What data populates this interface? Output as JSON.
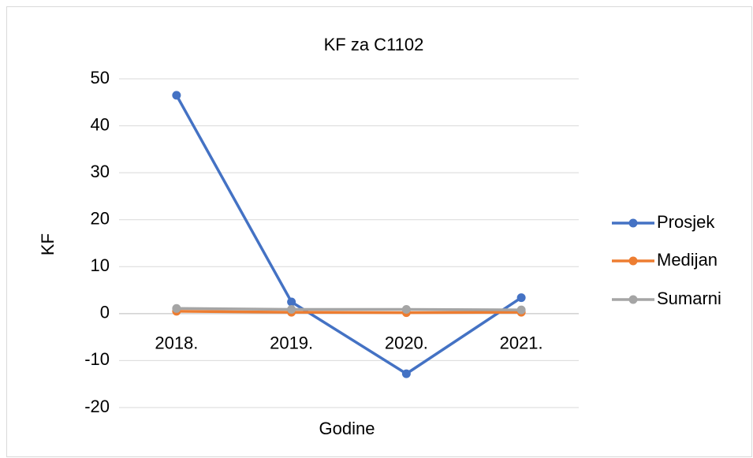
{
  "chart_data": {
    "type": "line",
    "title": "KF za C1102",
    "x_label": "Godine",
    "y_label": "KF",
    "categories": [
      "2018.",
      "2019.",
      "2020.",
      "2021."
    ],
    "series": [
      {
        "name": "Prosjek",
        "color": "#4472c4",
        "values": [
          46.5,
          2.5,
          -12.8,
          3.4
        ]
      },
      {
        "name": "Medijan",
        "color": "#ed7d31",
        "values": [
          0.5,
          0.3,
          0.2,
          0.3
        ]
      },
      {
        "name": "Sumarni",
        "color": "#a5a5a5",
        "values": [
          1.1,
          0.9,
          0.9,
          0.8
        ]
      }
    ],
    "ylim": [
      -20,
      50
    ],
    "yticks": [
      -20,
      -10,
      0,
      10,
      20,
      30,
      40,
      50
    ],
    "grid": true,
    "legend": "right"
  }
}
